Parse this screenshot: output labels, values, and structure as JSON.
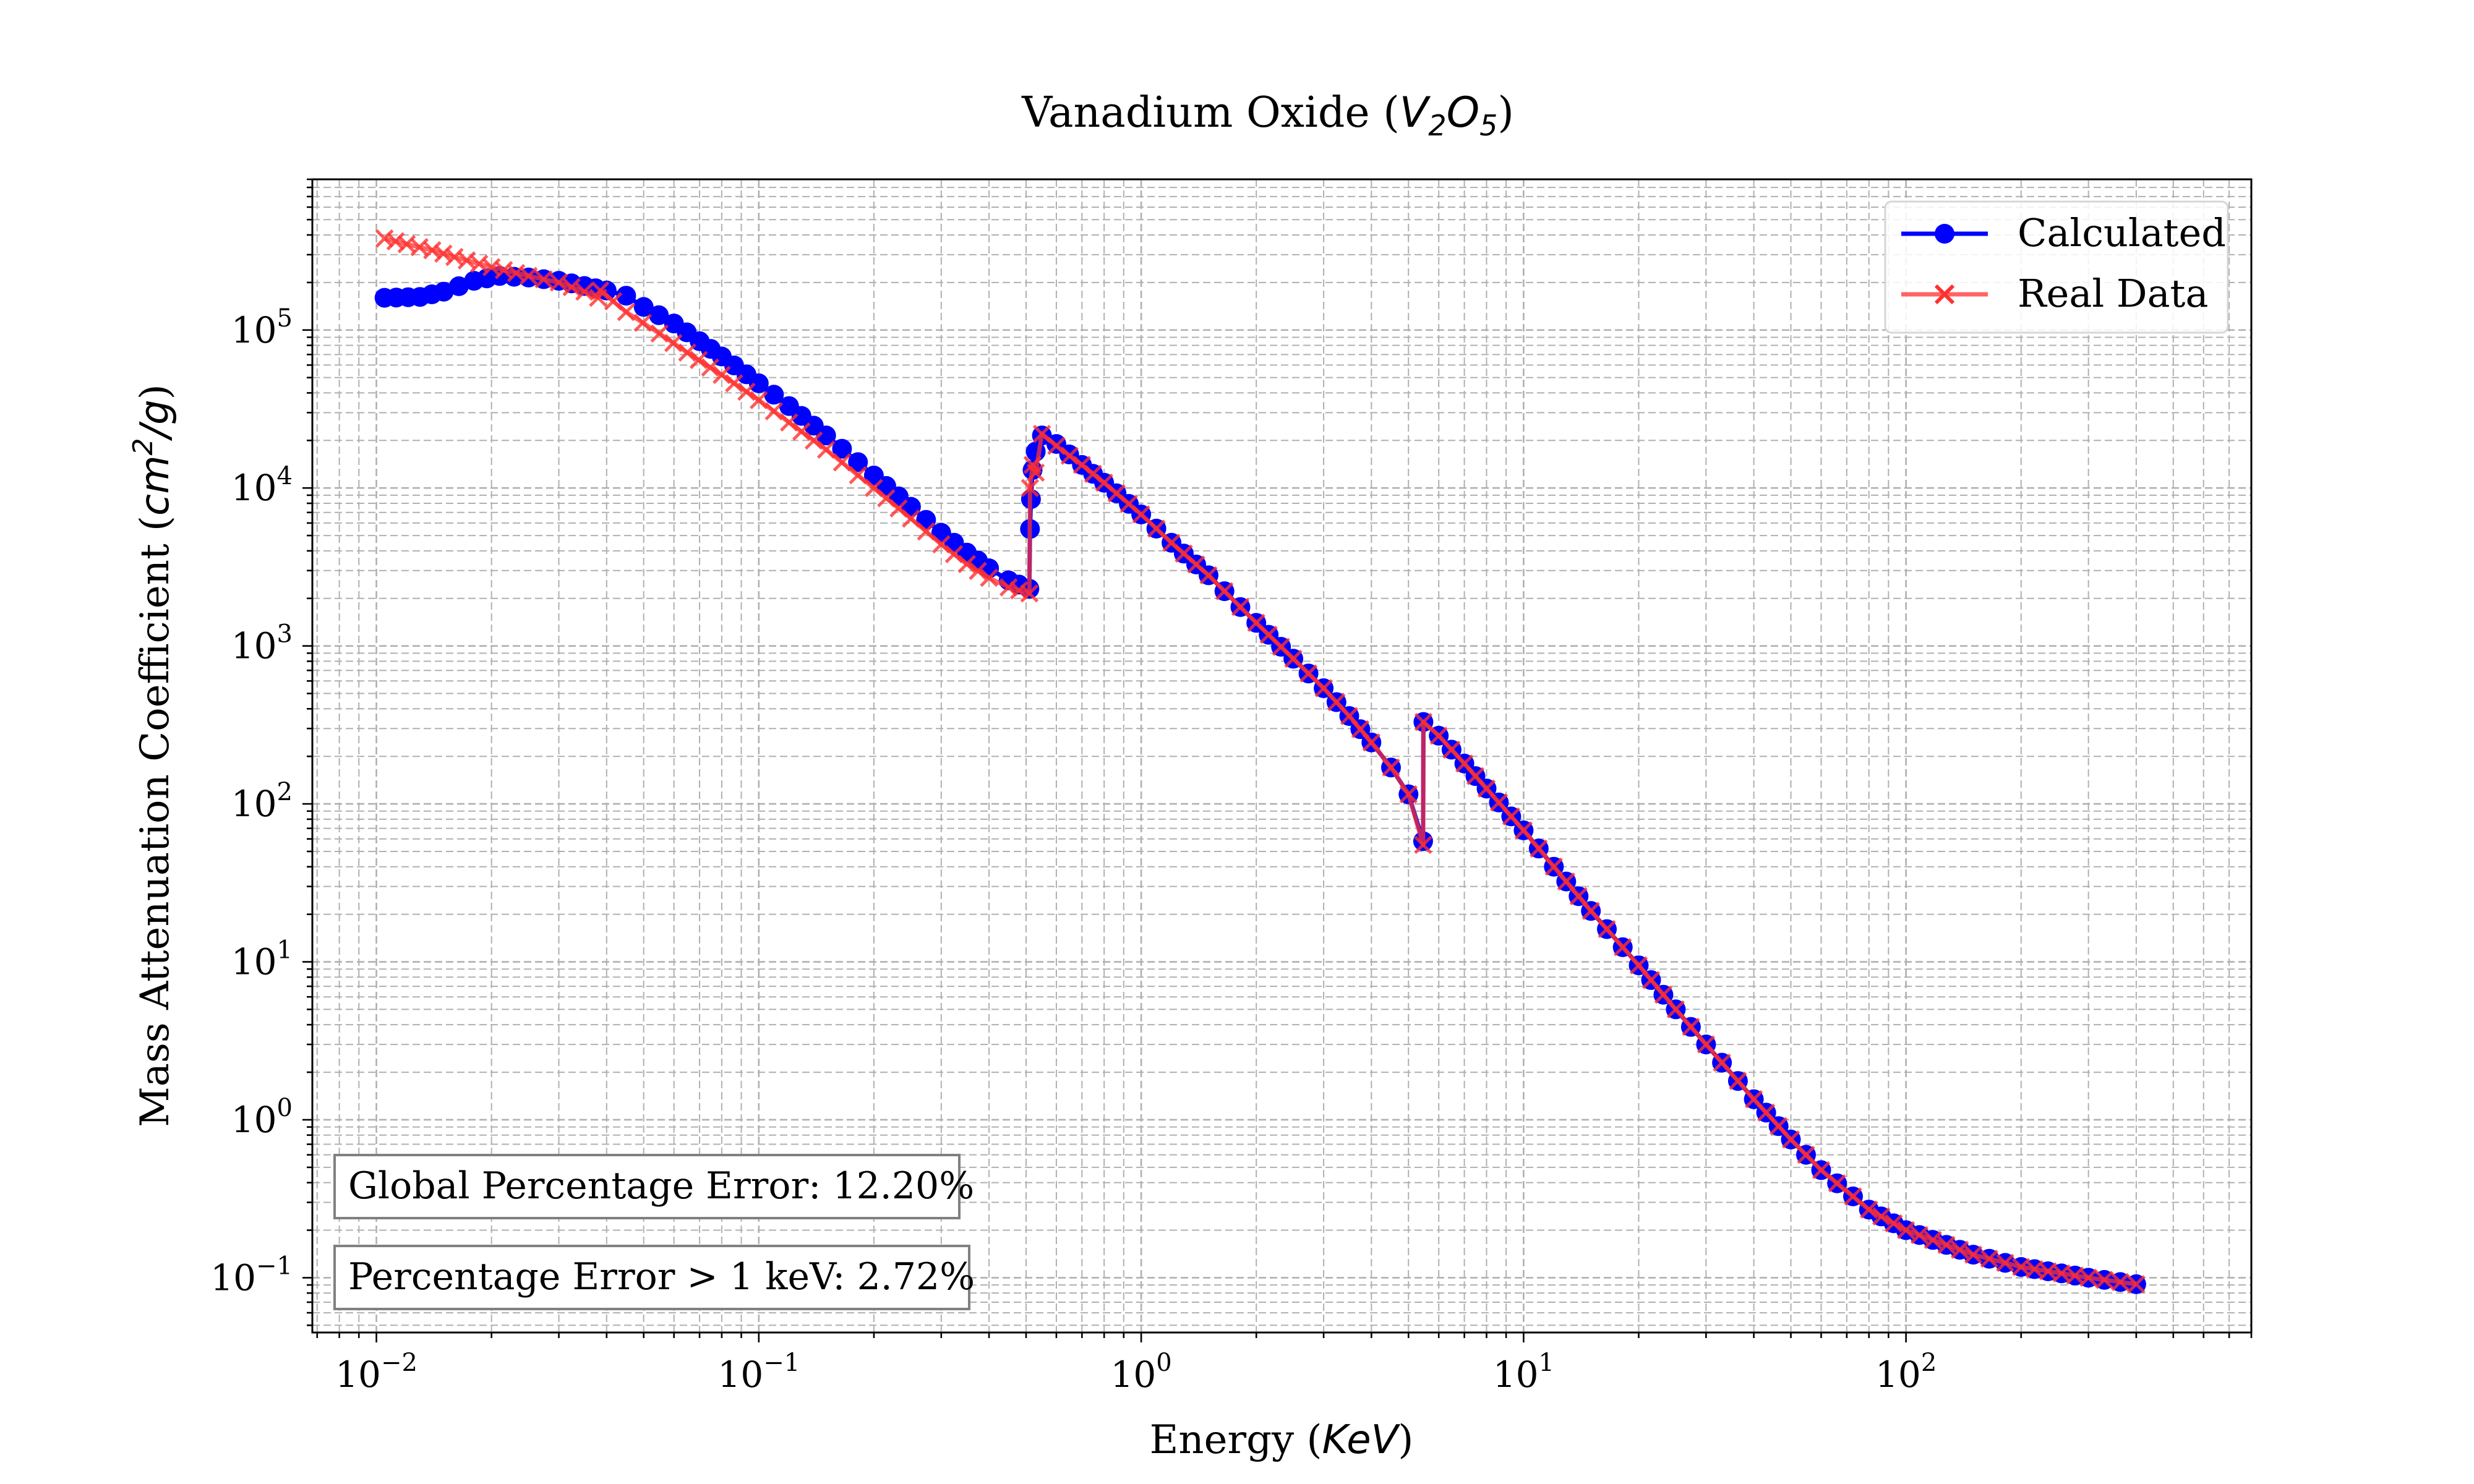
{
  "chart_data": {
    "type": "line",
    "title": "Vanadium Oxide",
    "title_formula": {
      "base1": "V",
      "sub1": "2",
      "base2": "O",
      "sub2": "5"
    },
    "xlabel": "Energy",
    "xunit": "KeV",
    "ylabel": "Mass Attenuation Coefficient",
    "yunit": {
      "base": "cm",
      "sup": "2",
      "rest": "/g"
    },
    "xscale": "log",
    "yscale": "log",
    "xlim": [
      0.0068,
      800
    ],
    "ylim": [
      0.045,
      900000
    ],
    "xticks": [
      {
        "base": "10",
        "exp": "−2",
        "value": 0.01
      },
      {
        "base": "10",
        "exp": "−1",
        "value": 0.1
      },
      {
        "base": "10",
        "exp": "0",
        "value": 1
      },
      {
        "base": "10",
        "exp": "1",
        "value": 10
      },
      {
        "base": "10",
        "exp": "2",
        "value": 100
      }
    ],
    "yticks": [
      {
        "base": "10",
        "exp": "−1",
        "value": 0.1
      },
      {
        "base": "10",
        "exp": "0",
        "value": 1
      },
      {
        "base": "10",
        "exp": "1",
        "value": 10
      },
      {
        "base": "10",
        "exp": "2",
        "value": 100
      },
      {
        "base": "10",
        "exp": "3",
        "value": 1000
      },
      {
        "base": "10",
        "exp": "4",
        "value": 10000
      },
      {
        "base": "10",
        "exp": "5",
        "value": 100000
      }
    ],
    "grid": true,
    "legend_position": "top-right",
    "series": [
      {
        "name": "Calculated",
        "color": "#0000ff",
        "marker": "circle",
        "points": [
          [
            0.0105,
            160000
          ],
          [
            0.013,
            162000
          ],
          [
            0.015,
            175000
          ],
          [
            0.018,
            205000
          ],
          [
            0.021,
            220000
          ],
          [
            0.025,
            215000
          ],
          [
            0.03,
            205000
          ],
          [
            0.035,
            190000
          ],
          [
            0.04,
            178000
          ],
          [
            0.045,
            165000
          ],
          [
            0.05,
            140000
          ],
          [
            0.06,
            110000
          ],
          [
            0.07,
            85000
          ],
          [
            0.08,
            68000
          ],
          [
            0.1,
            46000
          ],
          [
            0.12,
            33000
          ],
          [
            0.15,
            21500
          ],
          [
            0.2,
            12000
          ],
          [
            0.25,
            7600
          ],
          [
            0.3,
            5200
          ],
          [
            0.35,
            3900
          ],
          [
            0.4,
            3100
          ],
          [
            0.45,
            2600
          ],
          [
            0.51,
            2300
          ],
          [
            0.512,
            5500
          ],
          [
            0.515,
            8500
          ],
          [
            0.52,
            13000
          ],
          [
            0.53,
            17000
          ],
          [
            0.55,
            21500
          ],
          [
            0.6,
            19000
          ],
          [
            0.7,
            14000
          ],
          [
            0.8,
            10800
          ],
          [
            1.0,
            6800
          ],
          [
            1.2,
            4500
          ],
          [
            1.5,
            2800
          ],
          [
            2.0,
            1400
          ],
          [
            2.5,
            830
          ],
          [
            3.0,
            540
          ],
          [
            3.5,
            360
          ],
          [
            4.0,
            245
          ],
          [
            4.5,
            170
          ],
          [
            5.0,
            115
          ],
          [
            5.46,
            58
          ],
          [
            5.47,
            330
          ],
          [
            6.0,
            270
          ],
          [
            7.0,
            180
          ],
          [
            8.0,
            125
          ],
          [
            10.0,
            68
          ],
          [
            12.0,
            40
          ],
          [
            15.0,
            21
          ],
          [
            20.0,
            9.5
          ],
          [
            25.0,
            5.0
          ],
          [
            30.0,
            3.0
          ],
          [
            40.0,
            1.35
          ],
          [
            50.0,
            0.75
          ],
          [
            60.0,
            0.48
          ],
          [
            80.0,
            0.27
          ],
          [
            100.0,
            0.2
          ],
          [
            150.0,
            0.14
          ],
          [
            200.0,
            0.117
          ],
          [
            300.0,
            0.1
          ],
          [
            400.0,
            0.091
          ]
        ]
      },
      {
        "name": "Real Data",
        "color": "#ff3030",
        "marker": "x",
        "points": [
          [
            0.0105,
            380000
          ],
          [
            0.012,
            350000
          ],
          [
            0.014,
            320000
          ],
          [
            0.016,
            290000
          ],
          [
            0.02,
            250000
          ],
          [
            0.025,
            220000
          ],
          [
            0.03,
            200000
          ],
          [
            0.035,
            175000
          ],
          [
            0.038,
            160000
          ],
          [
            0.0385,
            178000
          ],
          [
            0.045,
            130000
          ],
          [
            0.055,
            95000
          ],
          [
            0.065,
            72000
          ],
          [
            0.08,
            52000
          ],
          [
            0.1,
            36000
          ],
          [
            0.12,
            26000
          ],
          [
            0.15,
            17500
          ],
          [
            0.2,
            10000
          ],
          [
            0.25,
            6400
          ],
          [
            0.3,
            4400
          ],
          [
            0.35,
            3300
          ],
          [
            0.4,
            2700
          ],
          [
            0.45,
            2350
          ],
          [
            0.51,
            2150
          ],
          [
            0.512,
            10000
          ],
          [
            0.52,
            14000
          ],
          [
            0.53,
            12500
          ],
          [
            0.55,
            22000
          ],
          [
            0.6,
            18500
          ],
          [
            0.65,
            16000
          ],
          [
            0.7,
            14000
          ],
          [
            0.8,
            10800
          ],
          [
            1.0,
            6800
          ],
          [
            1.2,
            4500
          ],
          [
            1.5,
            2800
          ],
          [
            2.0,
            1400
          ],
          [
            2.5,
            830
          ],
          [
            3.0,
            540
          ],
          [
            3.5,
            360
          ],
          [
            4.0,
            245
          ],
          [
            4.5,
            170
          ],
          [
            5.0,
            115
          ],
          [
            5.46,
            55
          ],
          [
            5.47,
            330
          ],
          [
            6.0,
            270
          ],
          [
            7.0,
            180
          ],
          [
            8.0,
            125
          ],
          [
            10.0,
            68
          ],
          [
            12.0,
            40
          ],
          [
            15.0,
            21
          ],
          [
            20.0,
            9.5
          ],
          [
            25.0,
            5.0
          ],
          [
            30.0,
            3.0
          ],
          [
            40.0,
            1.35
          ],
          [
            50.0,
            0.75
          ],
          [
            60.0,
            0.48
          ],
          [
            80.0,
            0.27
          ],
          [
            100.0,
            0.2
          ],
          [
            150.0,
            0.14
          ],
          [
            200.0,
            0.117
          ],
          [
            300.0,
            0.1
          ],
          [
            400.0,
            0.091
          ]
        ]
      }
    ],
    "annotations": [
      "Global Percentage Error: 12.20%",
      "Percentage Error > 1 keV: 2.72%"
    ]
  }
}
